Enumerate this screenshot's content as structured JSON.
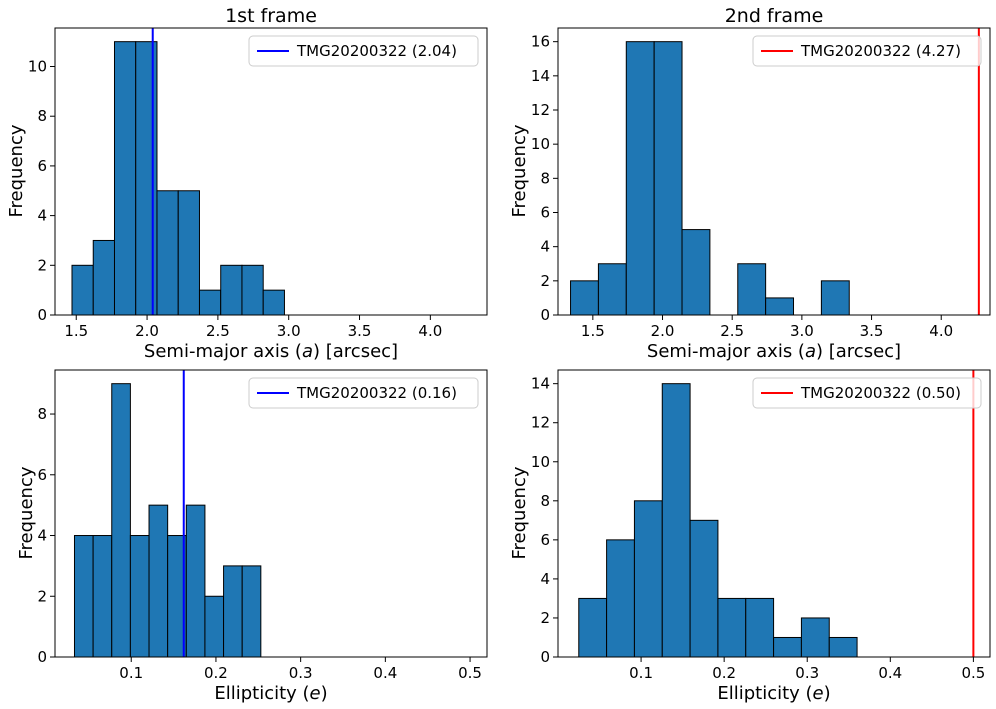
{
  "figure": {
    "colors": {
      "bar_fill": "#1f77b4",
      "bar_edge": "#000000"
    }
  },
  "chart_data": [
    {
      "type": "bar",
      "title": "1st frame",
      "xlabel": "Semi-major axis (a) [arcsec]",
      "xlabel_parts": [
        "Semi-major axis (",
        "a",
        ") [arcsec]"
      ],
      "ylabel": "Frequency",
      "xlim": [
        1.35,
        4.4
      ],
      "ylim": [
        0,
        11.55
      ],
      "xticks": [
        1.5,
        2.0,
        2.5,
        3.0,
        3.5,
        4.0
      ],
      "xtick_labels": [
        "1.5",
        "2.0",
        "2.5",
        "3.0",
        "3.5",
        "4.0"
      ],
      "yticks": [
        0,
        2,
        4,
        6,
        8,
        10
      ],
      "ytick_labels": [
        "0",
        "2",
        "4",
        "6",
        "8",
        "10"
      ],
      "bin_edges": [
        1.47,
        1.62,
        1.77,
        1.92,
        2.07,
        2.22,
        2.37,
        2.52,
        2.67,
        2.82,
        2.97
      ],
      "counts": [
        2,
        3,
        11,
        11,
        5,
        5,
        1,
        2,
        2,
        1
      ],
      "vline": {
        "x": 2.04,
        "color": "#0000ff",
        "label": "TMG20200322 (2.04)"
      },
      "legend_position": "upper-right"
    },
    {
      "type": "bar",
      "title": "2nd frame",
      "xlabel": "Semi-major axis (a) [arcsec]",
      "xlabel_parts": [
        "Semi-major axis (",
        "a",
        ") [arcsec]"
      ],
      "ylabel": "Frequency",
      "xlim": [
        1.25,
        4.35
      ],
      "ylim": [
        0,
        16.8
      ],
      "xticks": [
        1.5,
        2.0,
        2.5,
        3.0,
        3.5,
        4.0
      ],
      "xtick_labels": [
        "1.5",
        "2.0",
        "2.5",
        "3.0",
        "3.5",
        "4.0"
      ],
      "yticks": [
        0,
        2,
        4,
        6,
        8,
        10,
        12,
        14,
        16
      ],
      "ytick_labels": [
        "0",
        "2",
        "4",
        "6",
        "8",
        "10",
        "12",
        "14",
        "16"
      ],
      "bin_edges": [
        1.34,
        1.54,
        1.74,
        1.94,
        2.14,
        2.34,
        2.54,
        2.74,
        2.94,
        3.14,
        3.34
      ],
      "counts": [
        2,
        3,
        16,
        16,
        5,
        0,
        3,
        1,
        0,
        2
      ],
      "vline": {
        "x": 4.27,
        "color": "#ff0000",
        "label": "TMG20200322 (4.27)"
      },
      "legend_position": "upper-right"
    },
    {
      "type": "bar",
      "title": "",
      "xlabel": "Ellipticity (e)",
      "xlabel_parts": [
        "Ellipticity (",
        "e",
        ")"
      ],
      "ylabel": "Frequency",
      "xlim": [
        0.01,
        0.52
      ],
      "ylim": [
        0,
        9.45
      ],
      "xticks": [
        0.1,
        0.2,
        0.3,
        0.4,
        0.5
      ],
      "xtick_labels": [
        "0.1",
        "0.2",
        "0.3",
        "0.4",
        "0.5"
      ],
      "yticks": [
        0,
        2,
        4,
        6,
        8
      ],
      "ytick_labels": [
        "0",
        "2",
        "4",
        "6",
        "8"
      ],
      "bin_edges": [
        0.033,
        0.055,
        0.077,
        0.099,
        0.121,
        0.143,
        0.165,
        0.187,
        0.209,
        0.231,
        0.253
      ],
      "counts": [
        4,
        4,
        9,
        4,
        5,
        4,
        5,
        2,
        3,
        3
      ],
      "vline": {
        "x": 0.162,
        "color": "#0000ff",
        "label": "TMG20200322 (0.16)"
      },
      "legend_position": "upper-right"
    },
    {
      "type": "bar",
      "title": "",
      "xlabel": "Ellipticity (e)",
      "xlabel_parts": [
        "Ellipticity (",
        "e",
        ")"
      ],
      "ylabel": "Frequency",
      "xlim": [
        0.0,
        0.52
      ],
      "ylim": [
        0,
        14.7
      ],
      "xticks": [
        0.1,
        0.2,
        0.3,
        0.4,
        0.5
      ],
      "xtick_labels": [
        "0.1",
        "0.2",
        "0.3",
        "0.4",
        "0.5"
      ],
      "yticks": [
        0,
        2,
        4,
        6,
        8,
        10,
        12,
        14
      ],
      "ytick_labels": [
        "0",
        "2",
        "4",
        "6",
        "8",
        "10",
        "12",
        "14"
      ],
      "bin_edges": [
        0.025,
        0.0585,
        0.092,
        0.1255,
        0.159,
        0.1925,
        0.226,
        0.2595,
        0.293,
        0.3265,
        0.36
      ],
      "counts": [
        3,
        6,
        8,
        14,
        7,
        3,
        3,
        1,
        2,
        1
      ],
      "vline": {
        "x": 0.5,
        "color": "#ff0000",
        "label": "TMG20200322 (0.50)"
      },
      "legend_position": "upper-right"
    }
  ]
}
